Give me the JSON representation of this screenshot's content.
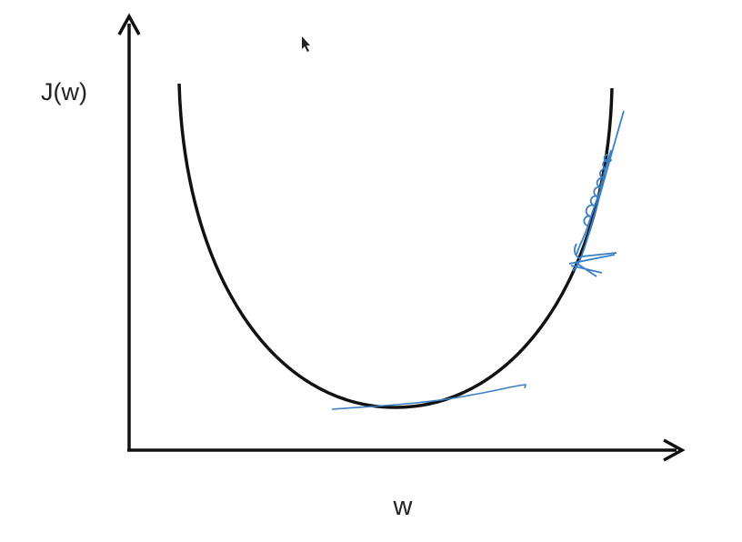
{
  "y_axis_label": "J(w)",
  "x_axis_label": "w"
}
